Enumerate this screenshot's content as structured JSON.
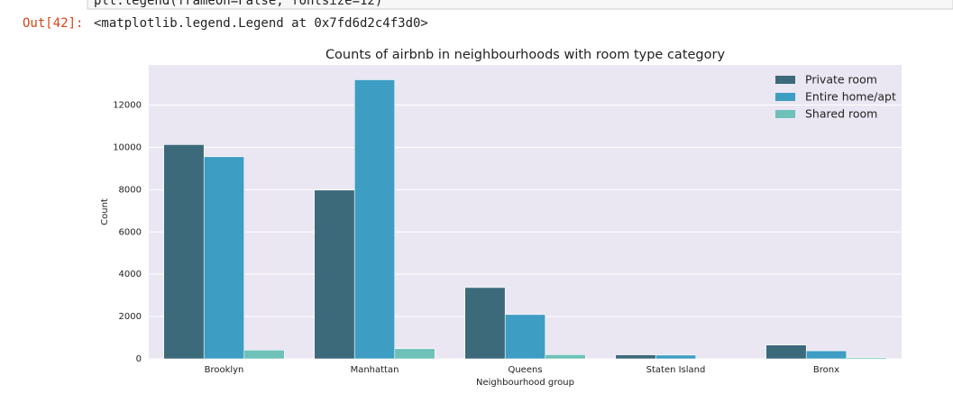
{
  "notebook": {
    "code": "plt.legend(frameon=False, fontsize=12)",
    "prompt": "Out[42]:",
    "output": "<matplotlib.legend.Legend at 0x7fd6d2c4f3d0>"
  },
  "chart_data": {
    "type": "bar",
    "title": "Counts of airbnb in neighbourhoods with room type category",
    "x_label": "Neighbourhood group",
    "y_label": "Count",
    "categories": [
      "Brooklyn",
      "Manhattan",
      "Queens",
      "Staten Island",
      "Bronx"
    ],
    "series": [
      {
        "name": "Private room",
        "color": "#3d6a7a",
        "values": [
          10132,
          7982,
          3372,
          188,
          652
        ]
      },
      {
        "name": "Entire home/apt",
        "color": "#3e9dc3",
        "values": [
          9559,
          13199,
          2096,
          176,
          379
        ]
      },
      {
        "name": "Shared room",
        "color": "#6dc1b8",
        "values": [
          413,
          480,
          198,
          9,
          60
        ]
      }
    ],
    "ylim": [
      0,
      13900
    ],
    "yticks": [
      0,
      2000,
      4000,
      6000,
      8000,
      10000,
      12000
    ],
    "grid": true,
    "legend": "upper right",
    "background": "#eae6f2"
  }
}
